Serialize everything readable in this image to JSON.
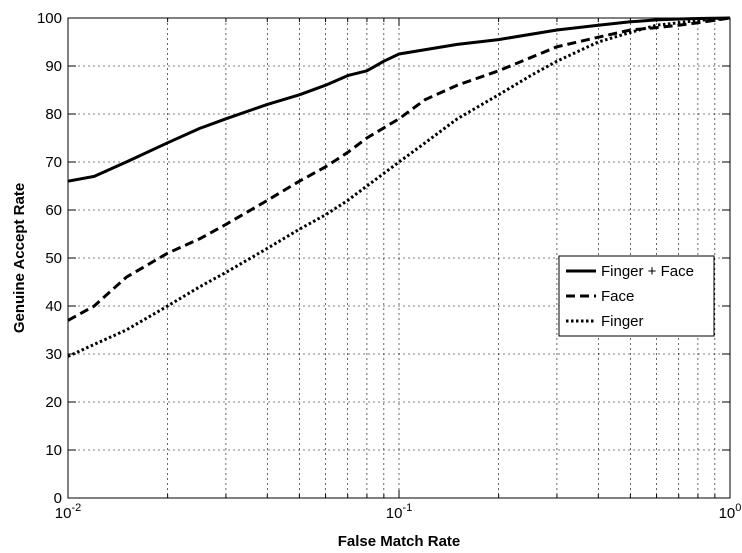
{
  "chart_data": {
    "type": "line",
    "title": "",
    "xlabel": "False Match Rate",
    "ylabel": "Genuine Accept Rate",
    "xscale": "log",
    "xlim": [
      0.01,
      1
    ],
    "ylim": [
      0,
      100
    ],
    "grid": true,
    "legend_position": "right",
    "x_tick_labels": [
      {
        "base": "10",
        "exp": "-2"
      },
      {
        "base": "10",
        "exp": "-1"
      },
      {
        "base": "10",
        "exp": "0"
      }
    ],
    "y_tick_labels": [
      "0",
      "10",
      "20",
      "30",
      "40",
      "50",
      "60",
      "70",
      "80",
      "90",
      "100"
    ],
    "series": [
      {
        "name": "Finger + Face",
        "style": "solid",
        "color": "#000000",
        "x": [
          0.01,
          0.012,
          0.015,
          0.02,
          0.025,
          0.03,
          0.04,
          0.05,
          0.06,
          0.07,
          0.08,
          0.09,
          0.1,
          0.15,
          0.2,
          0.3,
          0.4,
          0.5,
          0.6,
          0.7,
          0.8,
          1.0
        ],
        "y": [
          66,
          67,
          70,
          74,
          77,
          79,
          82,
          84,
          86,
          88,
          89,
          91,
          92.5,
          94.5,
          95.5,
          97.5,
          98.5,
          99.2,
          99.6,
          99.8,
          99.9,
          100
        ]
      },
      {
        "name": "Face",
        "style": "dashed",
        "color": "#000000",
        "x": [
          0.01,
          0.012,
          0.015,
          0.02,
          0.025,
          0.03,
          0.04,
          0.05,
          0.06,
          0.07,
          0.08,
          0.1,
          0.12,
          0.15,
          0.2,
          0.3,
          0.4,
          0.5,
          0.6,
          0.7,
          0.8,
          1.0
        ],
        "y": [
          37,
          40,
          46,
          51,
          54,
          57,
          62,
          66,
          69,
          72,
          75,
          79,
          83,
          86,
          89,
          94,
          96,
          97.5,
          98,
          98.5,
          99,
          100
        ]
      },
      {
        "name": "Finger",
        "style": "dotted",
        "color": "#000000",
        "x": [
          0.01,
          0.012,
          0.015,
          0.02,
          0.025,
          0.03,
          0.04,
          0.05,
          0.06,
          0.07,
          0.08,
          0.1,
          0.12,
          0.15,
          0.2,
          0.25,
          0.3,
          0.4,
          0.5,
          0.6,
          0.7,
          0.8,
          1.0
        ],
        "y": [
          29.5,
          32,
          35,
          40,
          44,
          47,
          52,
          56,
          59,
          62,
          65,
          70,
          74,
          79,
          84,
          88,
          91,
          95,
          97,
          98.5,
          99,
          99.5,
          100
        ]
      }
    ]
  }
}
